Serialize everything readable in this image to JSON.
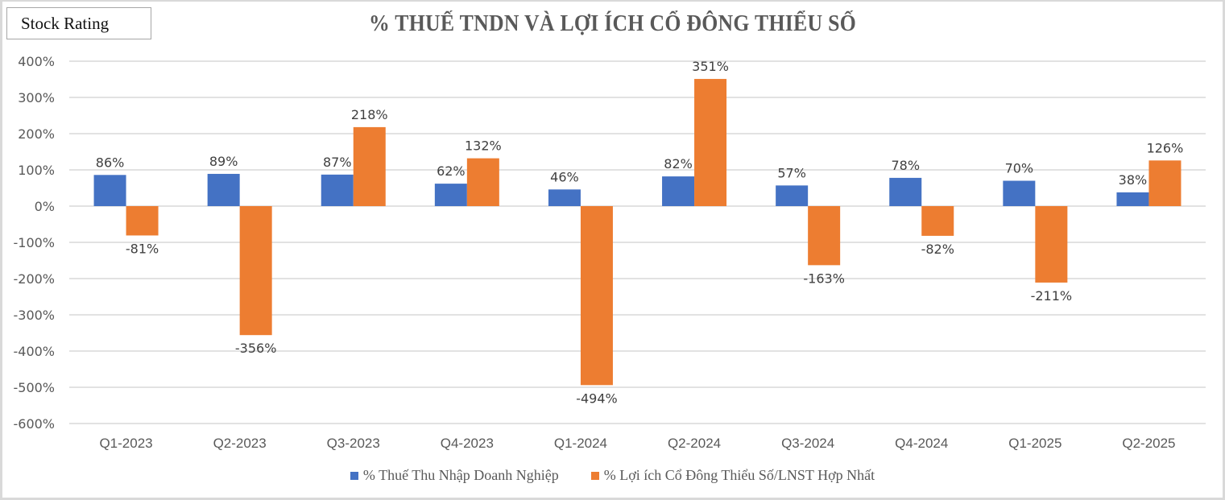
{
  "badge": {
    "label": "Stock Rating"
  },
  "chart_data": {
    "type": "bar",
    "title": "% THUẾ TNDN VÀ LỢI ÍCH CỔ ĐÔNG THIỂU SỐ",
    "xlabel": "",
    "ylabel": "",
    "ylim": [
      -600,
      400
    ],
    "yticks": [
      400,
      300,
      200,
      100,
      0,
      -100,
      -200,
      -300,
      -400,
      -500,
      -600
    ],
    "ytick_labels": [
      "400%",
      "300%",
      "200%",
      "100%",
      "0%",
      "-100%",
      "-200%",
      "-300%",
      "-400%",
      "-500%",
      "-600%"
    ],
    "grid": true,
    "legend_position": "bottom",
    "categories": [
      "Q1-2023",
      "Q2-2023",
      "Q3-2023",
      "Q4-2023",
      "Q1-2024",
      "Q2-2024",
      "Q3-2024",
      "Q4-2024",
      "Q1-2025",
      "Q2-2025"
    ],
    "series": [
      {
        "name": "% Thuế Thu Nhập Doanh Nghiệp",
        "color": "#4472c4",
        "values": [
          86,
          89,
          87,
          62,
          46,
          82,
          57,
          78,
          70,
          38
        ],
        "labels": [
          "86%",
          "89%",
          "87%",
          "62%",
          "46%",
          "82%",
          "57%",
          "78%",
          "70%",
          "38%"
        ]
      },
      {
        "name": "% Lợi ích Cổ Đông Thiểu Số/LNST Hợp Nhất",
        "color": "#ed7d31",
        "values": [
          -81,
          -356,
          218,
          132,
          -494,
          351,
          -163,
          -82,
          -211,
          126
        ],
        "labels": [
          "-81%",
          "-356%",
          "218%",
          "132%",
          "-494%",
          "351%",
          "-163%",
          "-82%",
          "-211%",
          "126%"
        ]
      }
    ]
  }
}
